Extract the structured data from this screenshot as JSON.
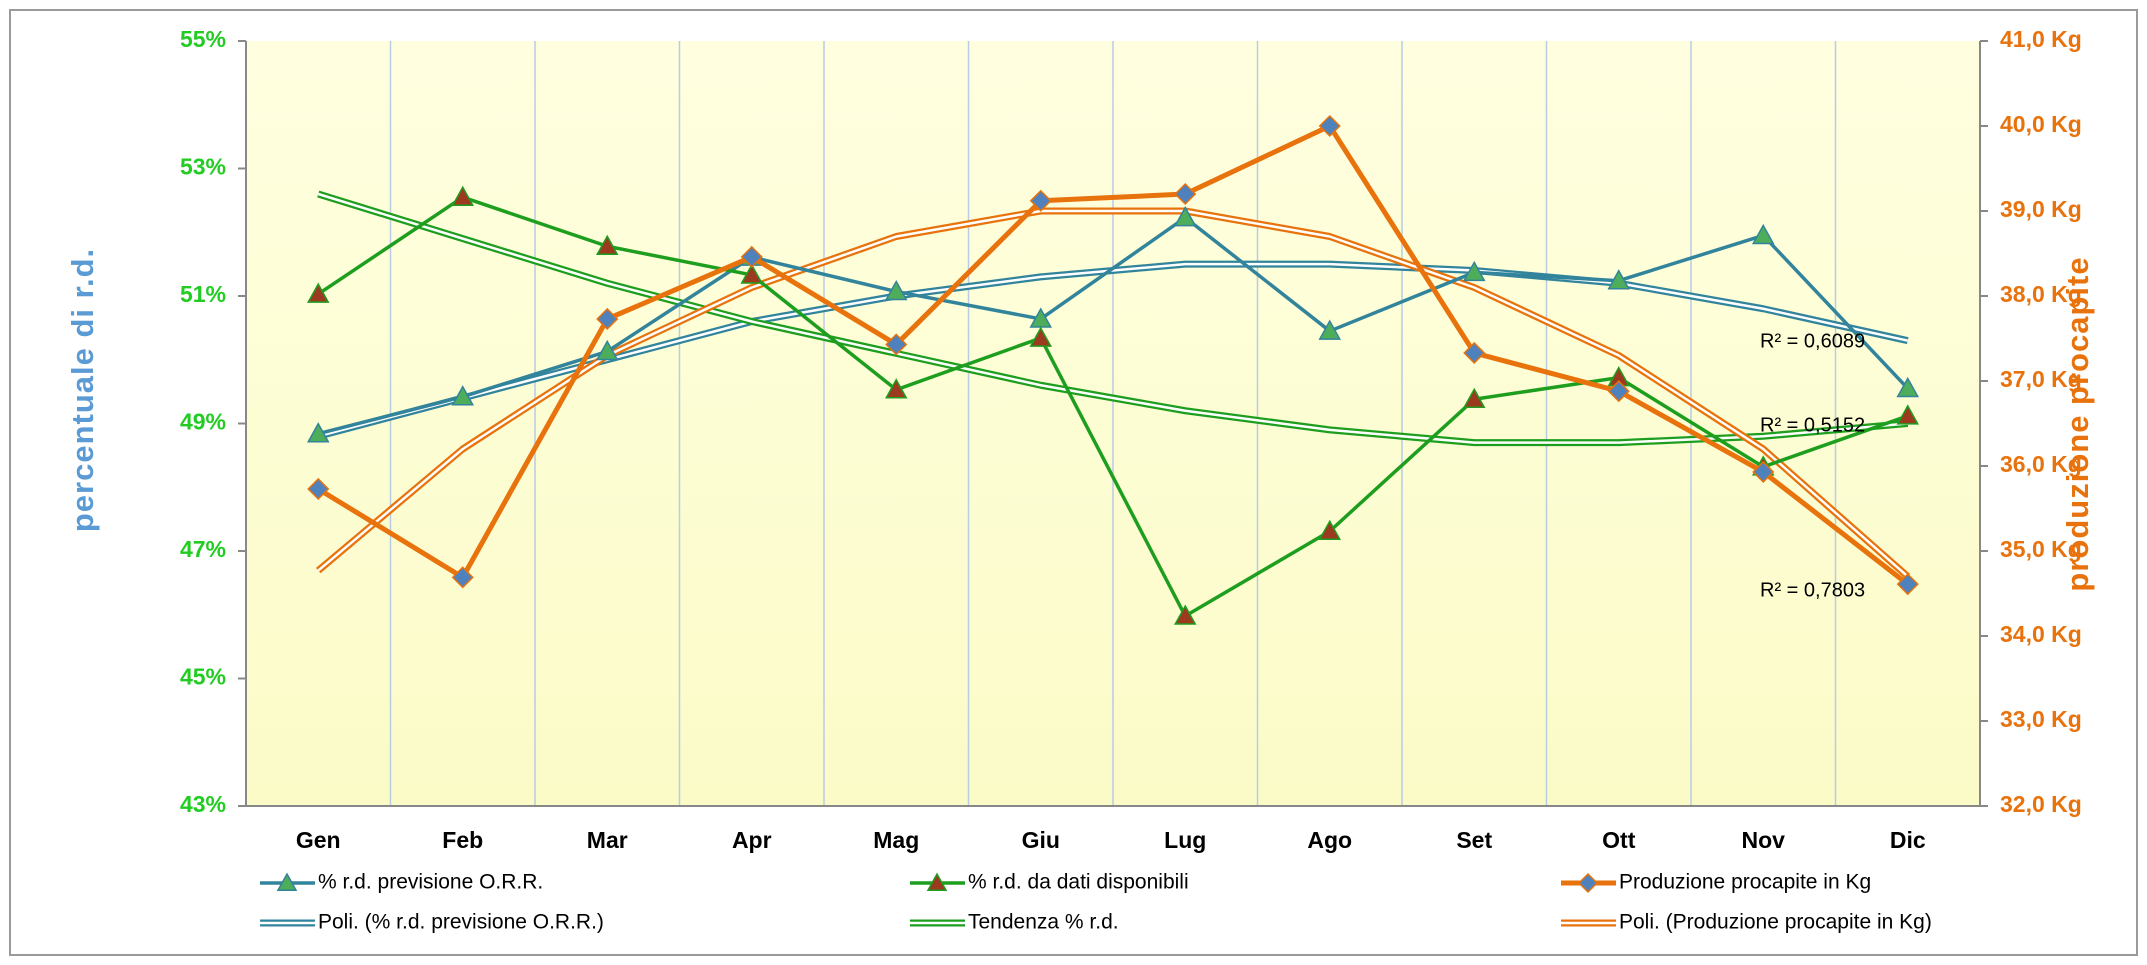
{
  "chart_data": {
    "type": "line",
    "y_label": "percentuale di r.d.",
    "y2_label": "produzione procapite",
    "categories": [
      "Gen",
      "Feb",
      "Mar",
      "Apr",
      "Mag",
      "Giu",
      "Lug",
      "Ago",
      "Set",
      "Ott",
      "Nov",
      "Dic"
    ],
    "ylim": [
      43,
      55
    ],
    "yticks": [
      {
        "value": 43,
        "label": "43%"
      },
      {
        "value": 45,
        "label": "45%"
      },
      {
        "value": 47,
        "label": "47%"
      },
      {
        "value": 49,
        "label": "49%"
      },
      {
        "value": 51,
        "label": "51%"
      },
      {
        "value": 53,
        "label": "53%"
      },
      {
        "value": 55,
        "label": "55%"
      }
    ],
    "y2lim": [
      32,
      41
    ],
    "y2ticks": [
      {
        "value": 32,
        "label": "32,0 Kg"
      },
      {
        "value": 33,
        "label": "33,0 Kg"
      },
      {
        "value": 34,
        "label": "34,0 Kg"
      },
      {
        "value": 35,
        "label": "35,0 Kg"
      },
      {
        "value": 36,
        "label": "36,0 Kg"
      },
      {
        "value": 37,
        "label": "37,0 Kg"
      },
      {
        "value": 38,
        "label": "38,0 Kg"
      },
      {
        "value": 39,
        "label": "39,0 Kg"
      },
      {
        "value": 40,
        "label": "40,0 Kg"
      },
      {
        "value": 41,
        "label": "41,0 Kg"
      }
    ],
    "grid": "vertical",
    "legend": "bottom",
    "series": [
      {
        "name": "% r.d. previsione O.R.R.",
        "color": "#31849b",
        "axis": "y",
        "line_style": "solid",
        "marker": "triangle",
        "marker_color": "#4ead5b",
        "values": [
          48.84,
          49.42,
          50.13,
          51.61,
          51.07,
          50.64,
          52.23,
          50.45,
          51.37,
          51.24,
          51.95,
          49.55
        ]
      },
      {
        "name": "% r.d. da dati disponibili",
        "color": "#1e9e1e",
        "axis": "y",
        "line_style": "solid",
        "marker": "triangle",
        "marker_color": "#9b3a1e",
        "values": [
          51.03,
          52.55,
          51.78,
          51.33,
          49.53,
          50.34,
          45.98,
          47.31,
          49.38,
          49.72,
          48.32,
          49.12
        ]
      },
      {
        "name": "Produzione procapite in Kg",
        "color": "#e8720c",
        "axis": "y2",
        "line_style": "solid",
        "marker": "diamond",
        "marker_color": "#4f81bd",
        "values": [
          35.73,
          34.69,
          37.73,
          38.46,
          37.43,
          39.12,
          39.2,
          40.0,
          37.33,
          36.88,
          35.93,
          34.61
        ]
      },
      {
        "name": "Poli. (% r.d. previsione O.R.R.)",
        "color": "#31849b",
        "axis": "y",
        "line_style": "double",
        "marker": null,
        "marker_color": null,
        "values": [
          48.8,
          49.4,
          50.0,
          50.6,
          51.0,
          51.3,
          51.5,
          51.5,
          51.4,
          51.2,
          50.8,
          50.3
        ]
      },
      {
        "name": "Tendenza % r.d.",
        "color": "#1e9e1e",
        "axis": "y",
        "line_style": "double",
        "marker": null,
        "marker_color": null,
        "values": [
          52.6,
          51.9,
          51.2,
          50.6,
          50.1,
          49.6,
          49.2,
          48.9,
          48.7,
          48.7,
          48.8,
          49.0
        ]
      },
      {
        "name": "Poli. (Produzione procapite in Kg)",
        "color": "#e8720c",
        "axis": "y2",
        "line_style": "double",
        "marker": null,
        "marker_color": null,
        "values": [
          34.77,
          36.2,
          37.3,
          38.1,
          38.7,
          39.0,
          39.0,
          38.7,
          38.1,
          37.3,
          36.2,
          34.7
        ]
      }
    ],
    "annotations": [
      {
        "text": "R² = 0,6089"
      },
      {
        "text": "R² = 0,5152"
      },
      {
        "text": "R² = 0,7803"
      }
    ]
  }
}
